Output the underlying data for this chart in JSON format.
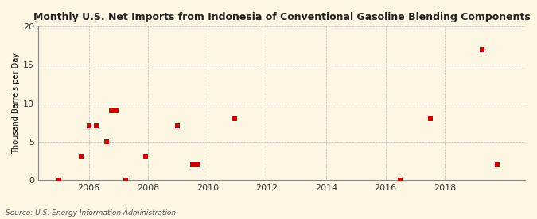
{
  "title": "Monthly U.S. Net Imports from Indonesia of Conventional Gasoline Blending Components",
  "ylabel": "Thousand Barrels per Day",
  "source": "Source: U.S. Energy Information Administration",
  "background_color": "#fdf6e3",
  "scatter_color": "#cc0000",
  "marker": "s",
  "marker_size": 4,
  "ylim": [
    0,
    20
  ],
  "yticks": [
    0,
    5,
    10,
    15,
    20
  ],
  "xlim": [
    2004.3,
    2020.7
  ],
  "xticks": [
    2006,
    2008,
    2010,
    2012,
    2014,
    2016,
    2018
  ],
  "grid_color": "#bbbbbb",
  "data_points": [
    [
      2005.0,
      0.0
    ],
    [
      2005.75,
      3.0
    ],
    [
      2006.0,
      7.0
    ],
    [
      2006.25,
      7.0
    ],
    [
      2006.6,
      5.0
    ],
    [
      2006.75,
      9.0
    ],
    [
      2006.92,
      9.0
    ],
    [
      2007.25,
      0.0
    ],
    [
      2007.92,
      3.0
    ],
    [
      2009.0,
      7.0
    ],
    [
      2009.5,
      2.0
    ],
    [
      2009.67,
      2.0
    ],
    [
      2010.92,
      8.0
    ],
    [
      2016.5,
      0.0
    ],
    [
      2017.5,
      8.0
    ],
    [
      2019.25,
      17.0
    ],
    [
      2019.75,
      2.0
    ]
  ]
}
